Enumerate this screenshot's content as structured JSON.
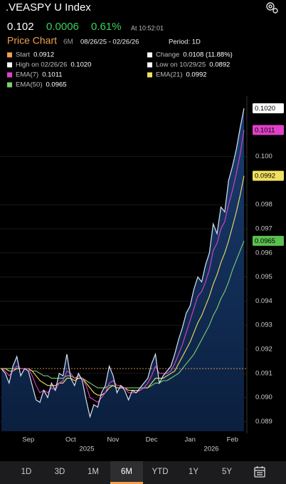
{
  "header": {
    "title": ".VEASPY U Index"
  },
  "quote": {
    "last": "0.102",
    "change": "0.0006",
    "change_pct": "0.61%",
    "time": "At 10:52:01"
  },
  "section": {
    "title": "Price Chart",
    "period": "6M",
    "range": "08/26/25 - 02/26/26",
    "interval": "Period: 1D"
  },
  "tabs": [
    "1D",
    "3D",
    "1M",
    "6M",
    "YTD",
    "1Y",
    "5Y"
  ],
  "selected_tab": "6M",
  "chart_data": {
    "type": "line",
    "categories": [
      null,
      null,
      null,
      null,
      null,
      null,
      null,
      "Sep",
      null,
      null,
      null,
      null,
      null,
      null,
      null,
      null,
      null,
      null,
      "Oct",
      null,
      null,
      null,
      null,
      null,
      null,
      null,
      null,
      null,
      null,
      "Nov",
      null,
      null,
      null,
      null,
      null,
      null,
      null,
      null,
      null,
      "Dec",
      null,
      null,
      null,
      null,
      null,
      null,
      null,
      null,
      null,
      "Jan",
      null,
      null,
      null,
      null,
      null,
      null,
      null,
      null,
      null,
      null,
      "Feb",
      null,
      null,
      null
    ],
    "years": [
      "2025",
      "2026"
    ],
    "stats": [
      {
        "label": "Start",
        "value": 0.0912,
        "color": "#f0a050"
      },
      {
        "label": "Change",
        "value": "0.0108 (11.88%)",
        "color": "#ffffff"
      },
      {
        "label": "High on 02/26/26",
        "value": "0.1020",
        "color": "#ffffff"
      },
      {
        "label": "Low on 10/29/25",
        "value": "0.0892",
        "color": "#ffffff"
      }
    ],
    "series": [
      {
        "color": "#d6e4f5",
        "tag": "0.1020",
        "tag_color": "#ffffff",
        "values": [
          0.0912,
          0.091,
          0.0906,
          0.0913,
          0.0917,
          0.0909,
          0.0912,
          0.0911,
          0.0905,
          0.0899,
          0.0898,
          0.0903,
          0.09,
          0.0906,
          0.0903,
          0.091,
          0.0909,
          0.0918,
          0.0908,
          0.0905,
          0.091,
          0.0907,
          0.0899,
          0.0892,
          0.0897,
          0.0896,
          0.0902,
          0.0905,
          0.0913,
          0.0909,
          0.0902,
          0.0905,
          0.0903,
          0.0899,
          0.0903,
          0.0902,
          0.0904,
          0.0906,
          0.0908,
          0.0914,
          0.0918,
          0.0906,
          0.0909,
          0.0911,
          0.0913,
          0.0918,
          0.0924,
          0.0929,
          0.0935,
          0.0938,
          0.0945,
          0.095,
          0.0948,
          0.0955,
          0.096,
          0.0972,
          0.0968,
          0.0979,
          0.0977,
          0.099,
          0.0996,
          0.1003,
          0.1012,
          0.102
        ]
      },
      {
        "name": "EMA(7)",
        "color": "#e040c8",
        "tag": "0.1011",
        "tag_color": "#e040c8",
        "values": [
          0.0912,
          0.0911,
          0.0909,
          0.0911,
          0.0913,
          0.0912,
          0.0912,
          0.0912,
          0.0909,
          0.0905,
          0.0902,
          0.0903,
          0.0902,
          0.0904,
          0.0903,
          0.0906,
          0.0907,
          0.0911,
          0.091,
          0.0908,
          0.0909,
          0.0908,
          0.0905,
          0.09,
          0.0899,
          0.0898,
          0.09,
          0.0902,
          0.0906,
          0.0907,
          0.0905,
          0.0905,
          0.0904,
          0.0902,
          0.0902,
          0.0902,
          0.0903,
          0.0904,
          0.0906,
          0.0909,
          0.0913,
          0.091,
          0.091,
          0.091,
          0.0911,
          0.0914,
          0.0918,
          0.0922,
          0.0927,
          0.0932,
          0.0937,
          0.0942,
          0.0944,
          0.0948,
          0.0953,
          0.0961,
          0.0964,
          0.097,
          0.0973,
          0.098,
          0.0986,
          0.0993,
          0.1001,
          0.1011
        ]
      },
      {
        "name": "EMA(21)",
        "color": "#f0e060",
        "tag": "0.0992",
        "tag_color": "#f0e060",
        "values": [
          0.0912,
          0.0912,
          0.0911,
          0.0911,
          0.0912,
          0.0912,
          0.0912,
          0.0912,
          0.0911,
          0.0909,
          0.0907,
          0.0906,
          0.0905,
          0.0905,
          0.0905,
          0.0906,
          0.0906,
          0.0908,
          0.0908,
          0.0907,
          0.0908,
          0.0908,
          0.0906,
          0.0904,
          0.0902,
          0.0901,
          0.0901,
          0.0902,
          0.0904,
          0.0905,
          0.0904,
          0.0904,
          0.0904,
          0.0903,
          0.0903,
          0.0903,
          0.0903,
          0.0904,
          0.0904,
          0.0906,
          0.0908,
          0.0908,
          0.0908,
          0.0909,
          0.091,
          0.0911,
          0.0914,
          0.0917,
          0.092,
          0.0923,
          0.0927,
          0.0931,
          0.0934,
          0.0938,
          0.0942,
          0.0947,
          0.0951,
          0.0956,
          0.096,
          0.0965,
          0.0971,
          0.0977,
          0.0984,
          0.0992
        ]
      },
      {
        "name": "EMA(50)",
        "color": "#7cd070",
        "tag": "0.0965",
        "tag_color": "#5cc050",
        "values": [
          0.0912,
          0.0912,
          0.0912,
          0.0912,
          0.0912,
          0.0912,
          0.0912,
          0.0912,
          0.0911,
          0.0911,
          0.091,
          0.0909,
          0.0909,
          0.0908,
          0.0908,
          0.0908,
          0.0908,
          0.0909,
          0.0909,
          0.0908,
          0.0908,
          0.0908,
          0.0907,
          0.0906,
          0.0905,
          0.0904,
          0.0904,
          0.0904,
          0.0905,
          0.0905,
          0.0904,
          0.0904,
          0.0904,
          0.0904,
          0.0904,
          0.0904,
          0.0904,
          0.0904,
          0.0904,
          0.0905,
          0.0906,
          0.0906,
          0.0907,
          0.0907,
          0.0908,
          0.0909,
          0.091,
          0.0912,
          0.0914,
          0.0916,
          0.0918,
          0.0921,
          0.0924,
          0.0927,
          0.093,
          0.0934,
          0.0937,
          0.0941,
          0.0944,
          0.0948,
          0.0953,
          0.0957,
          0.0961,
          0.0965
        ]
      }
    ],
    "ylim": [
      0.0886,
      0.1025
    ],
    "yticks": [
      {
        "value": 0.1,
        "label": "0.100"
      },
      0.098,
      0.097,
      0.096,
      0.095,
      0.094,
      0.093,
      0.092,
      0.091,
      {
        "value": 0.09,
        "label": "0.090"
      },
      0.089
    ],
    "grid": true
  }
}
